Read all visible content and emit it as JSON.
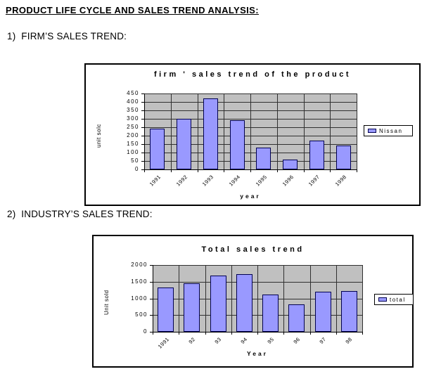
{
  "page": {
    "heading": "PRODUCT LIFE CYCLE AND SALES TREND ANALYSIS:",
    "sections": [
      {
        "label": "1)  FIRM’S SALES TREND:"
      },
      {
        "label": "2)  INDUSTRY’S SALES TREND:"
      }
    ]
  },
  "colors": {
    "bar_fill": "#9999FF",
    "bar_border": "#000050",
    "plot_bg": "#C0C0C0",
    "grid_line": "#303030",
    "chart_border": "#000000"
  },
  "chart_data": [
    {
      "type": "bar",
      "title": "firm ' sales trend of the product",
      "xlabel": "year",
      "ylabel": "unit solc",
      "categories": [
        "1991",
        "1992",
        "1993",
        "1994",
        "1995",
        "1996",
        "1997",
        "1998"
      ],
      "series": [
        {
          "name": "Nissan",
          "values": [
            240,
            300,
            420,
            290,
            130,
            60,
            170,
            140
          ]
        }
      ],
      "ylim": [
        0,
        450
      ],
      "ystep": 50,
      "grid": true,
      "legend_position": "right"
    },
    {
      "type": "bar",
      "title": "Total sales trend",
      "xlabel": "Year",
      "ylabel": "Unit sold",
      "categories": [
        "1991",
        "92",
        "93",
        "94",
        "95",
        "96",
        "97",
        "98"
      ],
      "series": [
        {
          "name": "total",
          "values": [
            1320,
            1450,
            1680,
            1720,
            1120,
            820,
            1200,
            1220
          ]
        }
      ],
      "ylim": [
        0,
        2000
      ],
      "ystep": 500,
      "grid": true,
      "legend_position": "right"
    }
  ]
}
